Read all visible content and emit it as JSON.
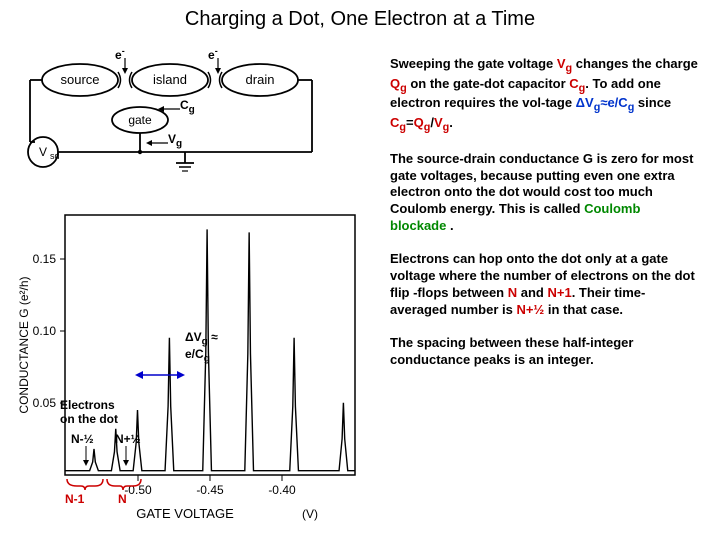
{
  "title": "Charging a Dot, One Electron at a Time",
  "circuit": {
    "e_left": "e",
    "e_right": "e",
    "e_minus": "-",
    "Cg": "C",
    "Cg_sub": "g",
    "Vg": "V",
    "Vg_sub": "g",
    "source": "source",
    "island": "island",
    "drain": "drain",
    "gate": "gate",
    "Vsd": "V",
    "Vsd_sub": "sd"
  },
  "chart": {
    "ylabel": "CONDUCTANCE G (e²/h)",
    "xlabel": "GATE VOLTAGE",
    "xunit": "(V)",
    "ylim": [
      0,
      0.18
    ],
    "yticks": [
      0.05,
      0.1,
      0.15
    ],
    "xlim": [
      -0.55,
      -0.35
    ],
    "xticks": [
      -0.5,
      -0.45,
      -0.4
    ],
    "peaks_x": [
      -0.53,
      -0.515,
      -0.5,
      -0.478,
      -0.452,
      -0.423,
      -0.392,
      -0.358
    ],
    "peaks_y": [
      0.018,
      0.032,
      0.045,
      0.095,
      0.17,
      0.168,
      0.095,
      0.05
    ],
    "peak_width": 0.003,
    "line_color": "#000000",
    "grid_box_color": "#000000",
    "background_color": "#ffffff",
    "dVg_label1": "ΔV",
    "dVg_sub": "g",
    "dVg_approx": " ≈",
    "dVg_label2": "e/C",
    "dVg_sub2": "g",
    "electrons_label": "Electrons",
    "on_dot_label": "on the dot",
    "N_minus_half": "N-½",
    "N_plus_half": "N+½",
    "N_minus_1": "N-1",
    "N_label": "N"
  },
  "text": {
    "p1a": "Sweeping the gate voltage ",
    "p1b": " changes the charge ",
    "p1c": " on the gate-dot capacitor ",
    "p1d": ". To add one electron requires the vol-tage ",
    "p1e": " since ",
    "p1f": "=",
    "p1g": "/",
    "p1h": ".",
    "p2a": "The source-drain conductance G is zero for most gate voltages, because putting even one extra electron onto the dot would cost too much Coulomb energy. This is called ",
    "p2b": "Coulomb blockade",
    "p2c": " .",
    "p3a": "Electrons can hop onto the dot only at a gate voltage where the number of electrons on the dot flip -flops between ",
    "p3b": "N",
    "p3c": " and ",
    "p3d": "N+1",
    "p3e": ". Their time-averaged number is ",
    "p3f": "N+½",
    "p3g": " in that case.",
    "p4": "The spacing between these half-integer conductance peaks is an integer.",
    "Vg": "V",
    "Vg_sub": "g",
    "Qg": "Q",
    "Qg_sub": "g",
    "Cg": "C",
    "Cg_sub": "g",
    "dVg": "ΔV",
    "approx": "≈e/C"
  }
}
